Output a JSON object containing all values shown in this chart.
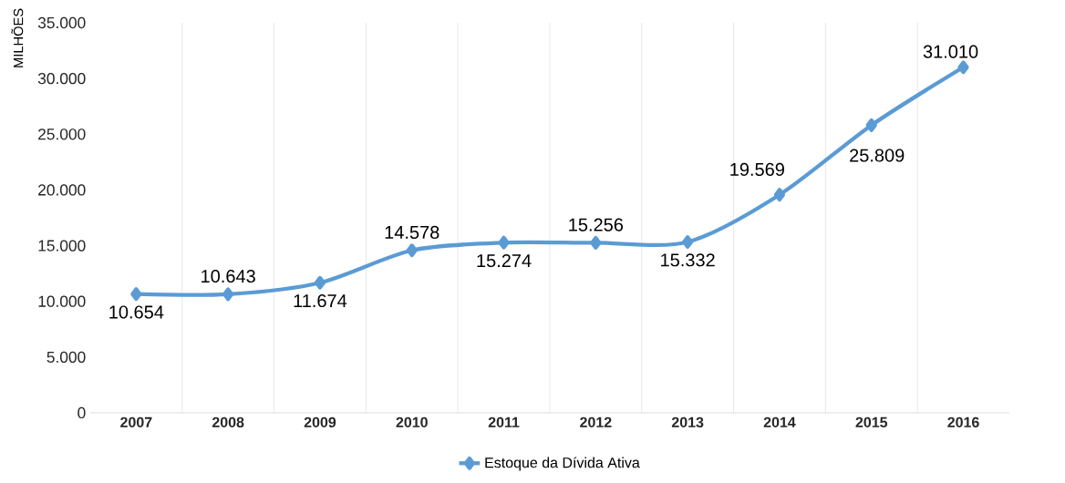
{
  "chart_data": {
    "type": "line",
    "ylabel": "MILHÕES",
    "categories": [
      "2007",
      "2008",
      "2009",
      "2010",
      "2011",
      "2012",
      "2013",
      "2014",
      "2015",
      "2016"
    ],
    "series": [
      {
        "name": "Estoque da Dívida Ativa",
        "color": "#5b9bd5",
        "values": [
          10654,
          10643,
          11674,
          14578,
          15274,
          15256,
          15332,
          19569,
          25809,
          31010
        ],
        "value_labels": [
          "10.654",
          "10.643",
          "11.674",
          "14.578",
          "15.274",
          "15.256",
          "15.332",
          "19.569",
          "25.809",
          "31.010"
        ]
      }
    ],
    "ylim": [
      0,
      35000
    ],
    "yticks": [
      {
        "value": 0,
        "label": "0"
      },
      {
        "value": 5000,
        "label": "5.000"
      },
      {
        "value": 10000,
        "label": "10.000"
      },
      {
        "value": 15000,
        "label": "15.000"
      },
      {
        "value": 20000,
        "label": "20.000"
      },
      {
        "value": 25000,
        "label": "25.000"
      },
      {
        "value": 30000,
        "label": "30.000"
      },
      {
        "value": 35000,
        "label": "35.000"
      }
    ],
    "grid": "x",
    "legend": "bottom",
    "marker": "diamond",
    "line_style": "solid"
  }
}
